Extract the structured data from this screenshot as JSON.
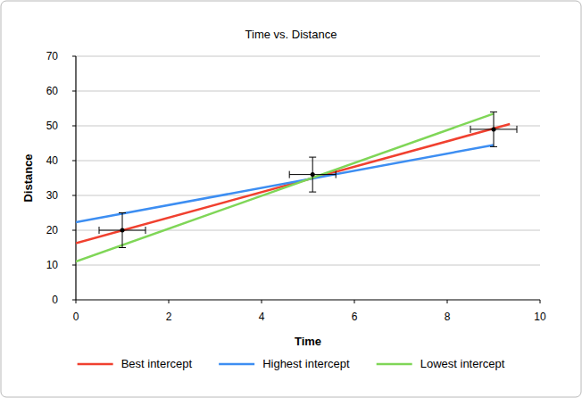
{
  "chart_data": {
    "type": "line",
    "title": "Time vs. Distance",
    "x_label": "Time",
    "y_label": "Distance",
    "xlim": [
      0,
      10
    ],
    "ylim": [
      0,
      70
    ],
    "xticks": [
      0,
      2,
      4,
      6,
      8,
      10
    ],
    "yticks": [
      0,
      10,
      20,
      30,
      40,
      50,
      60,
      70
    ],
    "grid": "y",
    "legend": "bottom",
    "series": [
      {
        "name": "Best intercept",
        "color": "#f0402f",
        "type": "line",
        "x": [
          0,
          9.35
        ],
        "values": [
          16.3,
          50.5
        ]
      },
      {
        "name": "Highest intercept",
        "color": "#3d8ef2",
        "type": "line",
        "x": [
          0,
          9
        ],
        "values": [
          22.3,
          44.5
        ]
      },
      {
        "name": "Lowest intercept",
        "color": "#7fd657",
        "type": "line",
        "x": [
          0,
          9
        ],
        "values": [
          11,
          53.5
        ]
      },
      {
        "type": "scatter",
        "color": "#000000",
        "marker": "circle",
        "x": [
          1,
          5.1,
          9
        ],
        "values": [
          20,
          36,
          49
        ],
        "x_error": [
          0.5,
          0.5,
          0.5
        ],
        "y_error": [
          5,
          5,
          5
        ]
      }
    ]
  }
}
